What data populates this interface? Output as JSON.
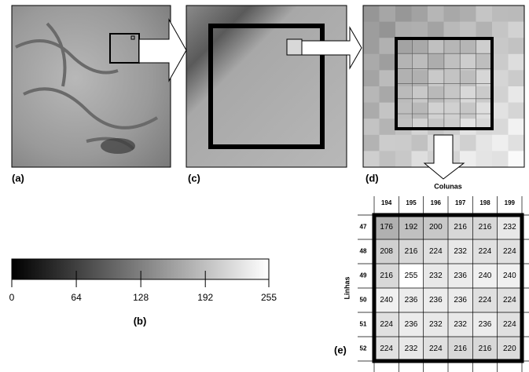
{
  "panels": {
    "a": "(a)",
    "b": "(b)",
    "c": "(c)",
    "d": "(d)",
    "e": "(e)"
  },
  "colorbar": {
    "range": [
      0,
      255
    ],
    "ticks": [
      0,
      64,
      128,
      192,
      255
    ]
  },
  "table": {
    "column_header": "Colunas",
    "row_header": "Linhas",
    "columns": [
      "194",
      "195",
      "196",
      "197",
      "198",
      "199"
    ],
    "rows": [
      "47",
      "48",
      "49",
      "50",
      "51",
      "52"
    ],
    "cells": [
      [
        176,
        192,
        200,
        216,
        216,
        232
      ],
      [
        208,
        216,
        224,
        232,
        224,
        224
      ],
      [
        216,
        255,
        232,
        236,
        240,
        240
      ],
      [
        240,
        236,
        236,
        236,
        224,
        224
      ],
      [
        224,
        236,
        232,
        232,
        236,
        224
      ],
      [
        224,
        232,
        224,
        216,
        216,
        220
      ]
    ]
  }
}
